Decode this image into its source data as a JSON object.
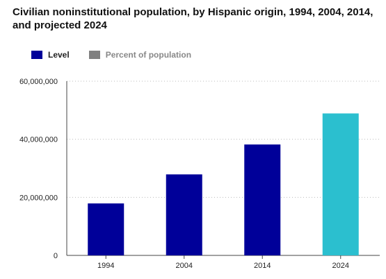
{
  "colors": {
    "level": "#000099",
    "projected": "#2bbfcf",
    "percent_legend": "#808080"
  },
  "legend": [
    {
      "label": "Level",
      "color": "#000099",
      "active": true
    },
    {
      "label": "Percent of population",
      "color": "#808080",
      "active": false
    }
  ],
  "chart_data": {
    "type": "bar",
    "title": "Civilian noninstitutional population, by Hispanic origin, 1994, 2004, 2014, and projected 2024",
    "categories": [
      "1994",
      "2004",
      "2014",
      "2024"
    ],
    "series": [
      {
        "name": "Level",
        "values": [
          17900000,
          27900000,
          38200000,
          48900000
        ]
      }
    ],
    "projected_categories": [
      "2024"
    ],
    "ylim": [
      0,
      60000000
    ],
    "yticks": [
      0,
      20000000,
      40000000,
      60000000
    ],
    "ytick_labels": [
      "0",
      "20,000,000",
      "40,000,000",
      "60,000,000"
    ],
    "xlabel": "",
    "ylabel": "",
    "grid": true,
    "legend_position": "top-left"
  }
}
